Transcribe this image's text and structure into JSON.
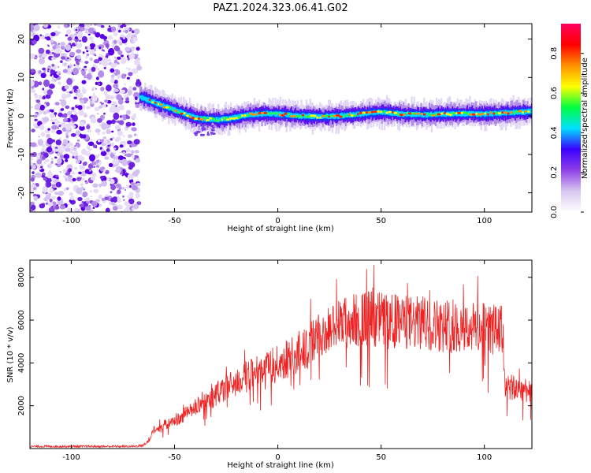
{
  "title": "PAZ1.2024.323.06.41.G02",
  "chart_data": [
    {
      "type": "heatmap",
      "xlabel": "Height of straight line (km)",
      "ylabel": "Frequency (Hz)",
      "xlim": [
        -120,
        123
      ],
      "ylim": [
        -25,
        24
      ],
      "xticks": [
        -100,
        -50,
        0,
        50,
        100
      ],
      "yticks": [
        -20,
        -10,
        0,
        10,
        20
      ],
      "noise_region_x": [
        -120,
        -67
      ],
      "ridge": {
        "x": [
          -67,
          -60,
          -55,
          -50,
          -45,
          -40,
          -35,
          -30,
          -25,
          -20,
          -15,
          -10,
          -5,
          0,
          10,
          20,
          30,
          40,
          50,
          60,
          70,
          80,
          90,
          100,
          110,
          123
        ],
        "y": [
          5,
          3.5,
          2.5,
          1.5,
          0.5,
          -0.5,
          -0.8,
          -1,
          -0.8,
          -0.3,
          0.2,
          0.5,
          0.6,
          0.5,
          0,
          -0.2,
          0,
          0.5,
          1,
          0.5,
          0.3,
          0.5,
          0.6,
          0.5,
          0.8,
          1.2
        ]
      },
      "colorbar": {
        "label": "Normalized spectral amplitude",
        "ticks": [
          "0.0",
          "0.2",
          "0.4",
          "0.6",
          "0.8"
        ],
        "range": [
          0,
          0.95
        ],
        "colors": [
          "#ffffff",
          "#d8c8f0",
          "#8f3fe6",
          "#3a00ff",
          "#00e0ff",
          "#00ff40",
          "#ffff00",
          "#ff9000",
          "#ff0000",
          "#ff0060"
        ]
      }
    },
    {
      "type": "line",
      "xlabel": "Height of straight line (km)",
      "ylabel": "SNR (10 * v/v)",
      "xlim": [
        -120,
        123
      ],
      "ylim": [
        0,
        8800
      ],
      "xticks": [
        -100,
        -50,
        0,
        50,
        100
      ],
      "yticks": [
        2000,
        4000,
        6000,
        8000
      ],
      "color": "#ee2222",
      "envelope": {
        "x": [
          -120,
          -70,
          -65,
          -62,
          -60,
          -55,
          -50,
          -45,
          -40,
          -35,
          -30,
          -25,
          -20,
          -15,
          -10,
          -5,
          0,
          5,
          10,
          15,
          20,
          25,
          30,
          35,
          40,
          45,
          50,
          55,
          60,
          65,
          70,
          75,
          80,
          85,
          90,
          95,
          100,
          105,
          109,
          110,
          112,
          115,
          123
        ],
        "y": [
          100,
          100,
          150,
          400,
          900,
          1100,
          1250,
          1600,
          1900,
          2200,
          2500,
          2850,
          3100,
          3350,
          3600,
          3800,
          3950,
          4200,
          4500,
          4800,
          5200,
          5550,
          5800,
          5950,
          6050,
          6100,
          6050,
          5950,
          5900,
          5850,
          5850,
          5800,
          5750,
          5700,
          5650,
          5650,
          5600,
          5550,
          5500,
          2900,
          2850,
          2800,
          2750
        ]
      },
      "noise_amplitude": 0.22
    }
  ]
}
